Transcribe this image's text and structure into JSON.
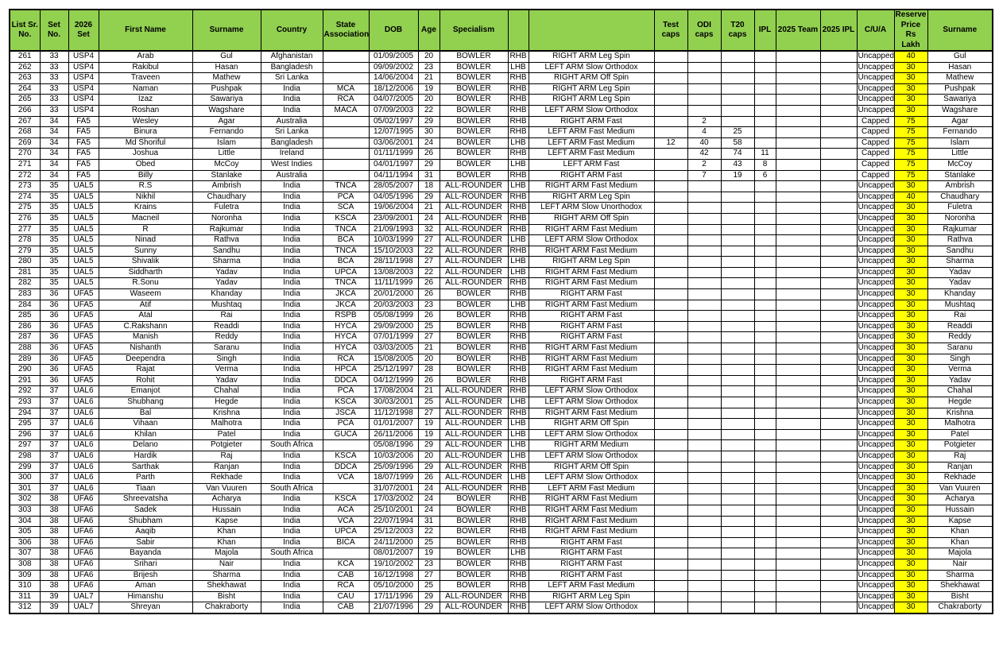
{
  "colors": {
    "header_bg": "#92D050",
    "reserve_price_bg": "#FFFF00",
    "border": "#000000",
    "row_bg": "#FFFFFF",
    "text": "#000000"
  },
  "table": {
    "headers": [
      "List Sr.\nNo.",
      "Set No.",
      "2026\nSet",
      "First Name",
      "Surname",
      "Country",
      "State\nAssociation",
      "DOB",
      "Age",
      "Specialism",
      "",
      "",
      "Test caps",
      "ODI caps",
      "T20 caps",
      "IPL",
      "2025 Team",
      "2025 IPL",
      "C/U/A",
      "Reserve\nPrice Rs\nLakh",
      "Surname"
    ],
    "header_names": [
      "list-sr-no",
      "set-no",
      "set-2026",
      "first-name",
      "surname",
      "country",
      "state-association",
      "dob",
      "age",
      "specialism",
      "batting-hand",
      "bowling-style",
      "test-caps",
      "odi-caps",
      "t20-caps",
      "ipl",
      "team-2025",
      "ipl-2025",
      "cua",
      "reserve-price",
      "surname-2"
    ],
    "price_col_index": 19,
    "rows": [
      [
        "261",
        "33",
        "USP4",
        "Arab",
        "Gul",
        "Afghanistan",
        "",
        "01/09/2005",
        "20",
        "BOWLER",
        "RHB",
        "RIGHT ARM Leg Spin",
        "",
        "",
        "",
        "",
        "",
        "",
        "Uncapped",
        "40",
        "Gul"
      ],
      [
        "262",
        "33",
        "USP4",
        "Rakibul",
        "Hasan",
        "Bangladesh",
        "",
        "09/09/2002",
        "23",
        "BOWLER",
        "LHB",
        "LEFT ARM Slow Orthodox",
        "",
        "",
        "",
        "",
        "",
        "",
        "Uncapped",
        "30",
        "Hasan"
      ],
      [
        "263",
        "33",
        "USP4",
        "Traveen",
        "Mathew",
        "Sri Lanka",
        "",
        "14/06/2004",
        "21",
        "BOWLER",
        "RHB",
        "RIGHT ARM Off Spin",
        "",
        "",
        "",
        "",
        "",
        "",
        "Uncapped",
        "30",
        "Mathew"
      ],
      [
        "264",
        "33",
        "USP4",
        "Naman",
        "Pushpak",
        "India",
        "MCA",
        "18/12/2006",
        "19",
        "BOWLER",
        "RHB",
        "RIGHT ARM Leg Spin",
        "",
        "",
        "",
        "",
        "",
        "",
        "Uncapped",
        "30",
        "Pushpak"
      ],
      [
        "265",
        "33",
        "USP4",
        "Izaz",
        "Sawariya",
        "India",
        "RCA",
        "04/07/2005",
        "20",
        "BOWLER",
        "RHB",
        "RIGHT ARM Leg Spin",
        "",
        "",
        "",
        "",
        "",
        "",
        "Uncapped",
        "30",
        "Sawariya"
      ],
      [
        "266",
        "33",
        "USP4",
        "Roshan",
        "Wagshare",
        "India",
        "MACA",
        "07/09/2003",
        "22",
        "BOWLER",
        "RHB",
        "LEFT ARM Slow Orthodox",
        "",
        "",
        "",
        "",
        "",
        "",
        "Uncapped",
        "30",
        "Wagshare"
      ],
      [
        "267",
        "34",
        "FA5",
        "Wesley",
        "Agar",
        "Australia",
        "",
        "05/02/1997",
        "29",
        "BOWLER",
        "RHB",
        "RIGHT ARM Fast",
        "",
        "2",
        "",
        "",
        "",
        "",
        "Capped",
        "75",
        "Agar"
      ],
      [
        "268",
        "34",
        "FA5",
        "Binura",
        "Fernando",
        "Sri Lanka",
        "",
        "12/07/1995",
        "30",
        "BOWLER",
        "RHB",
        "LEFT ARM Fast Medium",
        "",
        "4",
        "25",
        "",
        "",
        "",
        "Capped",
        "75",
        "Fernando"
      ],
      [
        "269",
        "34",
        "FA5",
        "Md Shoriful",
        "Islam",
        "Bangladesh",
        "",
        "03/06/2001",
        "24",
        "BOWLER",
        "LHB",
        "LEFT ARM Fast Medium",
        "12",
        "40",
        "58",
        "",
        "",
        "",
        "Capped",
        "75",
        "Islam"
      ],
      [
        "270",
        "34",
        "FA5",
        "Joshua",
        "Little",
        "Ireland",
        "",
        "01/11/1999",
        "26",
        "BOWLER",
        "RHB",
        "LEFT ARM Fast Medium",
        "",
        "42",
        "74",
        "11",
        "",
        "",
        "Capped",
        "75",
        "Little"
      ],
      [
        "271",
        "34",
        "FA5",
        "Obed",
        "McCoy",
        "West Indies",
        "",
        "04/01/1997",
        "29",
        "BOWLER",
        "LHB",
        "LEFT ARM Fast",
        "",
        "2",
        "43",
        "8",
        "",
        "",
        "Capped",
        "75",
        "McCoy"
      ],
      [
        "272",
        "34",
        "FA5",
        "Billy",
        "Stanlake",
        "Australia",
        "",
        "04/11/1994",
        "31",
        "BOWLER",
        "RHB",
        "RIGHT ARM Fast",
        "",
        "7",
        "19",
        "6",
        "",
        "",
        "Capped",
        "75",
        "Stanlake"
      ],
      [
        "273",
        "35",
        "UAL5",
        "R.S",
        "Ambrish",
        "India",
        "TNCA",
        "28/05/2007",
        "18",
        "ALL-ROUNDER",
        "LHB",
        "RIGHT ARM Fast Medium",
        "",
        "",
        "",
        "",
        "",
        "",
        "Uncapped",
        "30",
        "Ambrish"
      ],
      [
        "274",
        "35",
        "UAL5",
        "Nikhil",
        "Chaudhary",
        "India",
        "PCA",
        "04/05/1996",
        "29",
        "ALL-ROUNDER",
        "RHB",
        "RIGHT ARM Leg Spin",
        "",
        "",
        "",
        "",
        "",
        "",
        "Uncapped",
        "40",
        "Chaudhary"
      ],
      [
        "275",
        "35",
        "UAL5",
        "Krains",
        "Fuletra",
        "India",
        "SCA",
        "19/06/2004",
        "21",
        "ALL-ROUNDER",
        "RHB",
        "LEFT ARM Slow Unorthodox",
        "",
        "",
        "",
        "",
        "",
        "",
        "Uncapped",
        "30",
        "Fuletra"
      ],
      [
        "276",
        "35",
        "UAL5",
        "Macneil",
        "Noronha",
        "India",
        "KSCA",
        "23/09/2001",
        "24",
        "ALL-ROUNDER",
        "RHB",
        "RIGHT ARM Off Spin",
        "",
        "",
        "",
        "",
        "",
        "",
        "Uncapped",
        "30",
        "Noronha"
      ],
      [
        "277",
        "35",
        "UAL5",
        "R",
        "Rajkumar",
        "India",
        "TNCA",
        "21/09/1993",
        "32",
        "ALL-ROUNDER",
        "RHB",
        "RIGHT ARM Fast Medium",
        "",
        "",
        "",
        "",
        "",
        "",
        "Uncapped",
        "30",
        "Rajkumar"
      ],
      [
        "278",
        "35",
        "UAL5",
        "Ninad",
        "Rathva",
        "India",
        "BCA",
        "10/03/1999",
        "27",
        "ALL-ROUNDER",
        "LHB",
        "LEFT ARM Slow Orthodox",
        "",
        "",
        "",
        "",
        "",
        "",
        "Uncapped",
        "30",
        "Rathva"
      ],
      [
        "279",
        "35",
        "UAL5",
        "Sunny",
        "Sandhu",
        "India",
        "TNCA",
        "15/10/2003",
        "22",
        "ALL-ROUNDER",
        "RHB",
        "RIGHT ARM Fast Medium",
        "",
        "",
        "",
        "",
        "",
        "",
        "Uncapped",
        "30",
        "Sandhu"
      ],
      [
        "280",
        "35",
        "UAL5",
        "Shivalik",
        "Sharma",
        "India",
        "BCA",
        "28/11/1998",
        "27",
        "ALL-ROUNDER",
        "LHB",
        "RIGHT ARM Leg Spin",
        "",
        "",
        "",
        "",
        "",
        "",
        "Uncapped",
        "30",
        "Sharma"
      ],
      [
        "281",
        "35",
        "UAL5",
        "Siddharth",
        "Yadav",
        "India",
        "UPCA",
        "13/08/2003",
        "22",
        "ALL-ROUNDER",
        "LHB",
        "RIGHT ARM Fast Medium",
        "",
        "",
        "",
        "",
        "",
        "",
        "Uncapped",
        "30",
        "Yadav"
      ],
      [
        "282",
        "35",
        "UAL5",
        "R.Sonu",
        "Yadav",
        "India",
        "TNCA",
        "11/11/1999",
        "26",
        "ALL-ROUNDER",
        "RHB",
        "RIGHT ARM Fast Medium",
        "",
        "",
        "",
        "",
        "",
        "",
        "Uncapped",
        "30",
        "Yadav"
      ],
      [
        "283",
        "36",
        "UFA5",
        "Waseem",
        "Khanday",
        "India",
        "JKCA",
        "20/01/2000",
        "26",
        "BOWLER",
        "RHB",
        "RIGHT ARM Fast",
        "",
        "",
        "",
        "",
        "",
        "",
        "Uncapped",
        "30",
        "Khanday"
      ],
      [
        "284",
        "36",
        "UFA5",
        "Atif",
        "Mushtaq",
        "India",
        "JKCA",
        "20/03/2003",
        "23",
        "BOWLER",
        "LHB",
        "RIGHT ARM Fast Medium",
        "",
        "",
        "",
        "",
        "",
        "",
        "Uncapped",
        "30",
        "Mushtaq"
      ],
      [
        "285",
        "36",
        "UFA5",
        "Atal",
        "Rai",
        "India",
        "RSPB",
        "05/08/1999",
        "26",
        "BOWLER",
        "RHB",
        "RIGHT ARM Fast",
        "",
        "",
        "",
        "",
        "",
        "",
        "Uncapped",
        "30",
        "Rai"
      ],
      [
        "286",
        "36",
        "UFA5",
        "C.Rakshann",
        "Readdi",
        "India",
        "HYCA",
        "29/09/2000",
        "25",
        "BOWLER",
        "RHB",
        "RIGHT ARM Fast",
        "",
        "",
        "",
        "",
        "",
        "",
        "Uncapped",
        "30",
        "Readdi"
      ],
      [
        "287",
        "36",
        "UFA5",
        "Manish",
        "Reddy",
        "India",
        "HYCA",
        "07/01/1999",
        "27",
        "BOWLER",
        "RHB",
        "RIGHT ARM Fast",
        "",
        "",
        "",
        "",
        "",
        "",
        "Uncapped",
        "30",
        "Reddy"
      ],
      [
        "288",
        "36",
        "UFA5",
        "Nishanth",
        "Saranu",
        "India",
        "HYCA",
        "03/03/2005",
        "21",
        "BOWLER",
        "RHB",
        "RIGHT ARM Fast Medium",
        "",
        "",
        "",
        "",
        "",
        "",
        "Uncapped",
        "30",
        "Saranu"
      ],
      [
        "289",
        "36",
        "UFA5",
        "Deependra",
        "Singh",
        "India",
        "RCA",
        "15/08/2005",
        "20",
        "BOWLER",
        "RHB",
        "RIGHT ARM Fast Medium",
        "",
        "",
        "",
        "",
        "",
        "",
        "Uncapped",
        "30",
        "Singh"
      ],
      [
        "290",
        "36",
        "UFA5",
        "Rajat",
        "Verma",
        "India",
        "HPCA",
        "25/12/1997",
        "28",
        "BOWLER",
        "RHB",
        "RIGHT ARM Fast Medium",
        "",
        "",
        "",
        "",
        "",
        "",
        "Uncapped",
        "30",
        "Verma"
      ],
      [
        "291",
        "36",
        "UFA5",
        "Rohit",
        "Yadav",
        "India",
        "DDCA",
        "04/12/1999",
        "26",
        "BOWLER",
        "RHB",
        "RIGHT ARM Fast",
        "",
        "",
        "",
        "",
        "",
        "",
        "Uncapped",
        "30",
        "Yadav"
      ],
      [
        "292",
        "37",
        "UAL6",
        "Emanjot",
        "Chahal",
        "India",
        "PCA",
        "17/08/2004",
        "21",
        "ALL-ROUNDER",
        "RHB",
        "LEFT ARM Slow Orthodox",
        "",
        "",
        "",
        "",
        "",
        "",
        "Uncapped",
        "30",
        "Chahal"
      ],
      [
        "293",
        "37",
        "UAL6",
        "Shubhang",
        "Hegde",
        "India",
        "KSCA",
        "30/03/2001",
        "25",
        "ALL-ROUNDER",
        "LHB",
        "LEFT ARM Slow Orthodox",
        "",
        "",
        "",
        "",
        "",
        "",
        "Uncapped",
        "30",
        "Hegde"
      ],
      [
        "294",
        "37",
        "UAL6",
        "Bal",
        "Krishna",
        "India",
        "JSCA",
        "11/12/1998",
        "27",
        "ALL-ROUNDER",
        "RHB",
        "RIGHT ARM Fast Medium",
        "",
        "",
        "",
        "",
        "",
        "",
        "Uncapped",
        "30",
        "Krishna"
      ],
      [
        "295",
        "37",
        "UAL6",
        "Vihaan",
        "Malhotra",
        "India",
        "PCA",
        "01/01/2007",
        "19",
        "ALL-ROUNDER",
        "LHB",
        "RIGHT ARM Off Spin",
        "",
        "",
        "",
        "",
        "",
        "",
        "Uncapped",
        "30",
        "Malhotra"
      ],
      [
        "296",
        "37",
        "UAL6",
        "Khilan",
        "Patel",
        "India",
        "GUCA",
        "26/11/2006",
        "19",
        "ALL-ROUNDER",
        "LHB",
        "LEFT ARM Slow Orthodox",
        "",
        "",
        "",
        "",
        "",
        "",
        "Uncapped",
        "30",
        "Patel"
      ],
      [
        "297",
        "37",
        "UAL6",
        "Delano",
        "Potgieter",
        "South Africa",
        "",
        "05/08/1996",
        "29",
        "ALL-ROUNDER",
        "LHB",
        "RIGHT ARM Medium",
        "",
        "",
        "",
        "",
        "",
        "",
        "Uncapped",
        "30",
        "Potgieter"
      ],
      [
        "298",
        "37",
        "UAL6",
        "Hardik",
        "Raj",
        "India",
        "KSCA",
        "10/03/2006",
        "20",
        "ALL-ROUNDER",
        "LHB",
        "LEFT ARM Slow Orthodox",
        "",
        "",
        "",
        "",
        "",
        "",
        "Uncapped",
        "30",
        "Raj"
      ],
      [
        "299",
        "37",
        "UAL6",
        "Sarthak",
        "Ranjan",
        "India",
        "DDCA",
        "25/09/1996",
        "29",
        "ALL-ROUNDER",
        "RHB",
        "RIGHT ARM Off Spin",
        "",
        "",
        "",
        "",
        "",
        "",
        "Uncapped",
        "30",
        "Ranjan"
      ],
      [
        "300",
        "37",
        "UAL6",
        "Parth",
        "Rekhade",
        "India",
        "VCA",
        "18/07/1999",
        "26",
        "ALL-ROUNDER",
        "LHB",
        "LEFT ARM Slow Orthodox",
        "",
        "",
        "",
        "",
        "",
        "",
        "Uncapped",
        "30",
        "Rekhade"
      ],
      [
        "301",
        "37",
        "UAL6",
        "Tiaan",
        "Van Vuuren",
        "South Africa",
        "",
        "31/07/2001",
        "24",
        "ALL-ROUNDER",
        "RHB",
        "LEFT ARM Fast Medium",
        "",
        "",
        "",
        "",
        "",
        "",
        "Uncapped",
        "30",
        "Van Vuuren"
      ],
      [
        "302",
        "38",
        "UFA6",
        "Shreevatsha",
        "Acharya",
        "India",
        "KSCA",
        "17/03/2002",
        "24",
        "BOWLER",
        "RHB",
        "RIGHT ARM Fast Medium",
        "",
        "",
        "",
        "",
        "",
        "",
        "Uncapped",
        "30",
        "Acharya"
      ],
      [
        "303",
        "38",
        "UFA6",
        "Sadek",
        "Hussain",
        "India",
        "ACA",
        "25/10/2001",
        "24",
        "BOWLER",
        "RHB",
        "RIGHT ARM Fast Medium",
        "",
        "",
        "",
        "",
        "",
        "",
        "Uncapped",
        "30",
        "Hussain"
      ],
      [
        "304",
        "38",
        "UFA6",
        "Shubham",
        "Kapse",
        "India",
        "VCA",
        "22/07/1994",
        "31",
        "BOWLER",
        "RHB",
        "RIGHT ARM Fast Medium",
        "",
        "",
        "",
        "",
        "",
        "",
        "Uncapped",
        "30",
        "Kapse"
      ],
      [
        "305",
        "38",
        "UFA6",
        "Aaqib",
        "Khan",
        "India",
        "UPCA",
        "25/12/2003",
        "22",
        "BOWLER",
        "RHB",
        "RIGHT ARM Fast Medium",
        "",
        "",
        "",
        "",
        "",
        "",
        "Uncapped",
        "30",
        "Khan"
      ],
      [
        "306",
        "38",
        "UFA6",
        "Sabir",
        "Khan",
        "India",
        "BICA",
        "24/11/2000",
        "25",
        "BOWLER",
        "RHB",
        "RIGHT ARM Fast",
        "",
        "",
        "",
        "",
        "",
        "",
        "Uncapped",
        "30",
        "Khan"
      ],
      [
        "307",
        "38",
        "UFA6",
        "Bayanda",
        "Majola",
        "South Africa",
        "",
        "08/01/2007",
        "19",
        "BOWLER",
        "LHB",
        "RIGHT ARM Fast",
        "",
        "",
        "",
        "",
        "",
        "",
        "Uncapped",
        "30",
        "Majola"
      ],
      [
        "308",
        "38",
        "UFA6",
        "Srihari",
        "Nair",
        "India",
        "KCA",
        "19/10/2002",
        "23",
        "BOWLER",
        "RHB",
        "RIGHT ARM Fast",
        "",
        "",
        "",
        "",
        "",
        "",
        "Uncapped",
        "30",
        "Nair"
      ],
      [
        "309",
        "38",
        "UFA6",
        "Brijesh",
        "Sharma",
        "India",
        "CAB",
        "16/12/1998",
        "27",
        "BOWLER",
        "RHB",
        "RIGHT ARM Fast",
        "",
        "",
        "",
        "",
        "",
        "",
        "Uncapped",
        "30",
        "Sharma"
      ],
      [
        "310",
        "38",
        "UFA6",
        "Aman",
        "Shekhawat",
        "India",
        "RCA",
        "05/10/2000",
        "25",
        "BOWLER",
        "RHB",
        "LEFT ARM Fast Medium",
        "",
        "",
        "",
        "",
        "",
        "",
        "Uncapped",
        "30",
        "Shekhawat"
      ],
      [
        "311",
        "39",
        "UAL7",
        "Himanshu",
        "Bisht",
        "India",
        "CAU",
        "17/11/1996",
        "29",
        "ALL-ROUNDER",
        "RHB",
        "RIGHT ARM Leg Spin",
        "",
        "",
        "",
        "",
        "",
        "",
        "Uncapped",
        "30",
        "Bisht"
      ],
      [
        "312",
        "39",
        "UAL7",
        "Shreyan",
        "Chakraborty",
        "India",
        "CAB",
        "21/07/1996",
        "29",
        "ALL-ROUNDER",
        "RHB",
        "LEFT ARM Slow Orthodox",
        "",
        "",
        "",
        "",
        "",
        "",
        "Uncapped",
        "30",
        "Chakraborty"
      ]
    ]
  }
}
